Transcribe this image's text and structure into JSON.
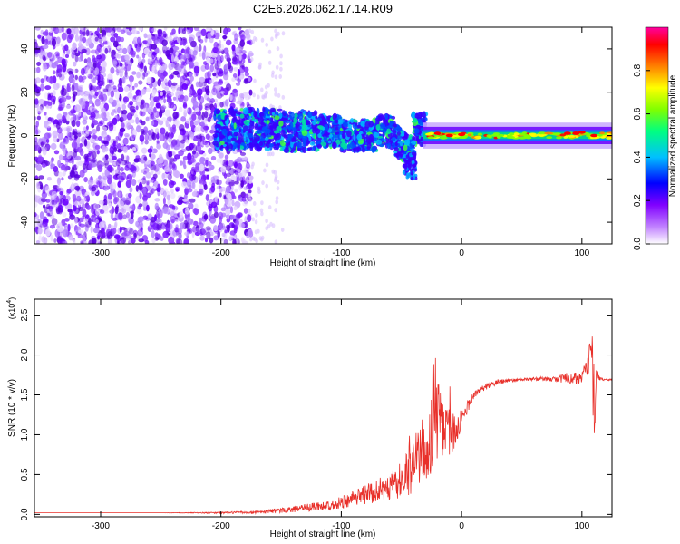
{
  "title": "C2E6.2026.062.17.14.R09",
  "chart_data": [
    {
      "type": "heatmap",
      "title": "C2E6.2026.062.17.14.R09",
      "xlabel": "Height of straight line (km)",
      "ylabel": "Frequency (Hz)",
      "xlim": [
        -355,
        125
      ],
      "ylim": [
        -50,
        50
      ],
      "xticks": [
        -300,
        -200,
        -100,
        0,
        100
      ],
      "yticks": [
        -40,
        -20,
        0,
        20,
        40
      ],
      "grid": false,
      "description_regions": [
        {
          "x_range": [
            -355,
            -175
          ],
          "pattern": "dense random purple/violet scatter across full frequency range"
        },
        {
          "x_range": [
            -175,
            -150
          ],
          "pattern": "sparse faint scatter"
        },
        {
          "x_range": [
            -200,
            -30
          ],
          "pattern": "signal band near 0 Hz, width about ±10 Hz, blue/cyan/green blobs; dip to about -20 Hz near -45 km"
        },
        {
          "x_range": [
            -30,
            125
          ],
          "pattern": "narrow steady band at 0 Hz, green/yellow with red spots"
        }
      ],
      "colorbar": {
        "label": "Normalized spectral amplitude",
        "range": [
          0,
          1
        ],
        "ticks": [
          "0.0",
          "0.2",
          "0.4",
          "0.6",
          "0.8"
        ],
        "tick_values": [
          0.0,
          0.2,
          0.4,
          0.6,
          0.8
        ],
        "colors": [
          "#ffffff",
          "#8000ff",
          "#0000ff",
          "#00c0ff",
          "#00ff80",
          "#80ff00",
          "#ffff00",
          "#ff8000",
          "#ff0000",
          "#ff00a0"
        ]
      }
    },
    {
      "type": "line",
      "xlabel": "Height of straight line (km)",
      "ylabel": "SNR (10 * v/v)",
      "multiplier_base": "(x10",
      "multiplier_exp": "4",
      "multiplier_close": ")",
      "xlim": [
        -355,
        125
      ],
      "ylim": [
        -0.03,
        2.7
      ],
      "xticks": [
        -300,
        -200,
        -100,
        0,
        100
      ],
      "yticks": [
        0.0,
        0.5,
        1.0,
        1.5,
        2.0,
        2.5
      ],
      "yticklabels": [
        "0.0",
        "0.5",
        "1.0",
        "1.5",
        "2.0",
        "2.5"
      ],
      "series": [
        {
          "name": "SNR",
          "color": "#e8302a",
          "x": [
            -355,
            -300,
            -250,
            -200,
            -170,
            -150,
            -130,
            -110,
            -100,
            -90,
            -80,
            -70,
            -60,
            -50,
            -45,
            -40,
            -35,
            -30,
            -25,
            -22,
            -20,
            -15,
            -10,
            -5,
            0,
            10,
            20,
            30,
            40,
            50,
            60,
            70,
            80,
            90,
            100,
            105,
            108,
            110,
            112,
            115,
            120,
            125
          ],
          "y": [
            0.02,
            0.02,
            0.02,
            0.02,
            0.03,
            0.05,
            0.08,
            0.12,
            0.15,
            0.2,
            0.25,
            0.3,
            0.35,
            0.45,
            0.52,
            0.62,
            0.75,
            0.85,
            1.0,
            1.4,
            1.2,
            1.1,
            1.0,
            1.05,
            1.2,
            1.5,
            1.6,
            1.66,
            1.68,
            1.69,
            1.7,
            1.7,
            1.71,
            1.71,
            1.72,
            1.85,
            2.3,
            1.0,
            1.75,
            1.7,
            1.69,
            1.69
          ],
          "noise": [
            0.0,
            0.0,
            0.0,
            0.01,
            0.02,
            0.03,
            0.05,
            0.06,
            0.08,
            0.1,
            0.12,
            0.15,
            0.18,
            0.25,
            0.3,
            0.35,
            0.4,
            0.45,
            0.55,
            0.6,
            0.55,
            0.4,
            0.3,
            0.2,
            0.12,
            0.05,
            0.04,
            0.03,
            0.02,
            0.02,
            0.02,
            0.03,
            0.05,
            0.07,
            0.08,
            0.15,
            0.3,
            0.5,
            0.1,
            0.02,
            0.01,
            0.01
          ]
        }
      ]
    }
  ]
}
